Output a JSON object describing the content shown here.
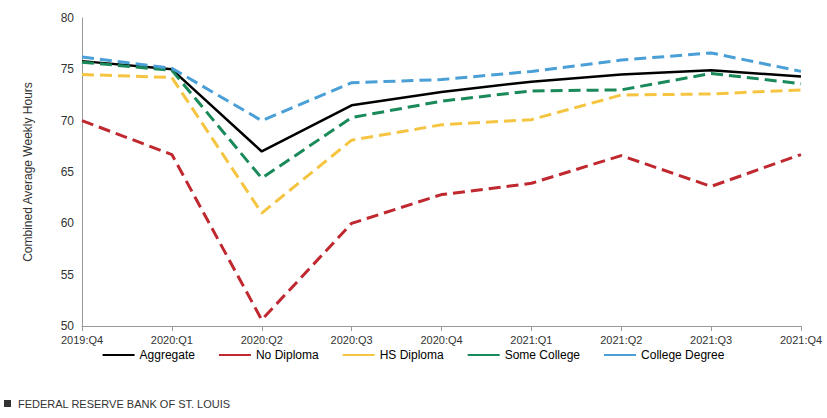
{
  "chart_data": {
    "type": "line",
    "y_label": "Combined Average Weekly Hours",
    "source": "FEDERAL RESERVE BANK OF ST. LOUIS",
    "categories": [
      "2019:Q4",
      "2020:Q1",
      "2020:Q2",
      "2020:Q3",
      "2020:Q4",
      "2021:Q1",
      "2021:Q2",
      "2021:Q3",
      "2021:Q4"
    ],
    "series": [
      {
        "name": "Aggregate",
        "color": "#000000",
        "line_style": "solid",
        "values": [
          75.8,
          75.0,
          67.0,
          71.5,
          72.8,
          73.8,
          74.5,
          74.9,
          74.3
        ]
      },
      {
        "name": "No Diploma",
        "color": "#c0282f",
        "line_style": "dashed",
        "values": [
          70.0,
          66.7,
          50.6,
          60.0,
          62.8,
          63.9,
          66.6,
          63.6,
          66.7
        ]
      },
      {
        "name": "HS Diploma",
        "color": "#f5c542",
        "line_style": "dashed",
        "values": [
          74.5,
          74.2,
          61.0,
          68.1,
          69.6,
          70.1,
          72.5,
          72.6,
          73.0
        ]
      },
      {
        "name": "Some College",
        "color": "#1a8a5a",
        "line_style": "dashed",
        "values": [
          75.7,
          74.9,
          64.4,
          70.3,
          71.9,
          72.9,
          73.0,
          74.6,
          73.6
        ]
      },
      {
        "name": "College Degree",
        "color": "#4a9fd6",
        "line_style": "dashed",
        "values": [
          76.2,
          75.1,
          70.0,
          73.7,
          74.0,
          74.8,
          75.9,
          76.6,
          74.8
        ]
      }
    ],
    "ylim": [
      50,
      80
    ],
    "yticks": [
      50,
      55,
      60,
      65,
      70,
      75,
      80
    ],
    "grid": false,
    "legend": "bottom"
  }
}
